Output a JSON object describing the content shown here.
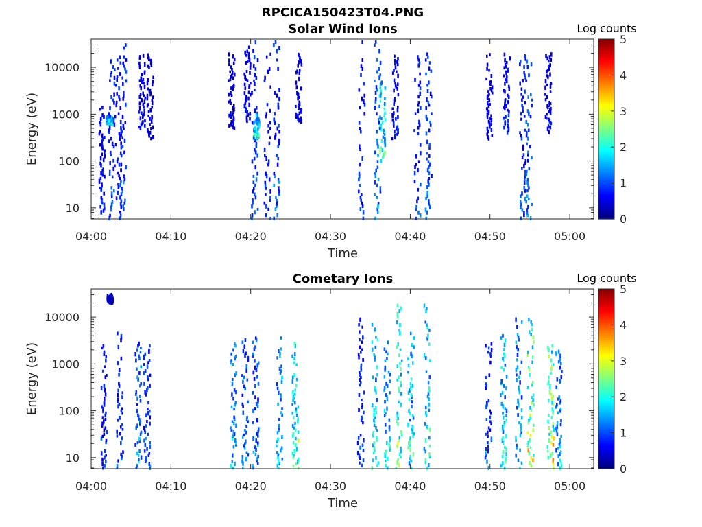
{
  "figure": {
    "title": "RPCICA150423T04.PNG"
  },
  "chart_data": [
    {
      "type": "heatmap",
      "title": "Solar Wind Ions",
      "xlabel": "Time",
      "ylabel": "Energy (eV)",
      "x_ticks": [
        "04:00",
        "04:10",
        "04:20",
        "04:30",
        "04:40",
        "04:50",
        "05:00"
      ],
      "x_range_minutes": [
        0,
        63
      ],
      "y_ticks": [
        "10",
        "100",
        "1000",
        "10000"
      ],
      "y_scale": "log",
      "y_range": [
        5.8,
        40000
      ],
      "colorbar": {
        "label": "Log counts",
        "ticks": [
          "0",
          "1",
          "2",
          "3",
          "4",
          "5"
        ],
        "range": [
          0,
          5
        ],
        "colormap": "jet"
      },
      "columns": [
        {
          "time_minutes": 1.3,
          "energy_range_eV": [
            8,
            2000
          ],
          "level": 0.6
        },
        {
          "time_minutes": 2.2,
          "energy_range_eV": [
            600,
            900
          ],
          "level": 1.6
        },
        {
          "time_minutes": 2.5,
          "energy_range_eV": [
            6,
            20000
          ],
          "level": 0.8
        },
        {
          "time_minutes": 3.3,
          "energy_range_eV": [
            6,
            25000
          ],
          "level": 0.7
        },
        {
          "time_minutes": 3.9,
          "energy_range_eV": [
            6,
            40000
          ],
          "level": 0.8
        },
        {
          "time_minutes": 6.3,
          "energy_range_eV": [
            500,
            20000
          ],
          "level": 0.5
        },
        {
          "time_minutes": 7.3,
          "energy_range_eV": [
            300,
            20000
          ],
          "level": 0.4
        },
        {
          "time_minutes": 17.5,
          "energy_range_eV": [
            500,
            20000
          ],
          "level": 0.4
        },
        {
          "time_minutes": 19.5,
          "energy_range_eV": [
            700,
            30000
          ],
          "level": 0.5
        },
        {
          "time_minutes": 20.4,
          "energy_range_eV": [
            6,
            40000
          ],
          "level": 0.8
        },
        {
          "time_minutes": 20.6,
          "energy_range_eV": [
            300,
            1000
          ],
          "level": 1.6
        },
        {
          "time_minutes": 22.0,
          "energy_range_eV": [
            6,
            40000
          ],
          "level": 0.7
        },
        {
          "time_minutes": 23.1,
          "energy_range_eV": [
            6,
            40000
          ],
          "level": 0.9
        },
        {
          "time_minutes": 25.9,
          "energy_range_eV": [
            700,
            20000
          ],
          "level": 0.5
        },
        {
          "time_minutes": 33.8,
          "energy_range_eV": [
            6,
            40000
          ],
          "level": 0.7
        },
        {
          "time_minutes": 35.8,
          "energy_range_eV": [
            6,
            40000
          ],
          "level": 1.1
        },
        {
          "time_minutes": 36.4,
          "energy_range_eV": [
            100,
            5000
          ],
          "level": 1.7
        },
        {
          "time_minutes": 38.0,
          "energy_range_eV": [
            300,
            20000
          ],
          "level": 0.6
        },
        {
          "time_minutes": 40.8,
          "energy_range_eV": [
            6,
            25000
          ],
          "level": 0.8
        },
        {
          "time_minutes": 42.2,
          "energy_range_eV": [
            6,
            25000
          ],
          "level": 0.9
        },
        {
          "time_minutes": 49.8,
          "energy_range_eV": [
            300,
            20000
          ],
          "level": 0.5
        },
        {
          "time_minutes": 52.0,
          "energy_range_eV": [
            400,
            20000
          ],
          "level": 0.6
        },
        {
          "time_minutes": 54.0,
          "energy_range_eV": [
            6,
            20000
          ],
          "level": 0.8
        },
        {
          "time_minutes": 54.8,
          "energy_range_eV": [
            6,
            20000
          ],
          "level": 1.0
        },
        {
          "time_minutes": 57.2,
          "energy_range_eV": [
            400,
            20000
          ],
          "level": 0.5
        }
      ]
    },
    {
      "type": "heatmap",
      "title": "Cometary Ions",
      "xlabel": "Time",
      "ylabel": "Energy (eV)",
      "x_ticks": [
        "04:00",
        "04:10",
        "04:20",
        "04:30",
        "04:40",
        "04:50",
        "05:00"
      ],
      "x_range_minutes": [
        0,
        63
      ],
      "y_ticks": [
        "10",
        "100",
        "1000",
        "10000"
      ],
      "y_scale": "log",
      "y_range": [
        5.8,
        40000
      ],
      "colorbar": {
        "label": "Log counts",
        "ticks": [
          "0",
          "1",
          "2",
          "3",
          "4",
          "5"
        ],
        "range": [
          0,
          5
        ],
        "colormap": "jet"
      },
      "columns": [
        {
          "time_minutes": 1.5,
          "energy_range_eV": [
            6,
            3000
          ],
          "level": 0.7
        },
        {
          "time_minutes": 2.3,
          "energy_range_eV": [
            20000,
            30000
          ],
          "level": 0.3
        },
        {
          "time_minutes": 3.5,
          "energy_range_eV": [
            6,
            5000
          ],
          "level": 0.8
        },
        {
          "time_minutes": 5.8,
          "energy_range_eV": [
            6,
            3000
          ],
          "level": 1.1
        },
        {
          "time_minutes": 6.9,
          "energy_range_eV": [
            6,
            3000
          ],
          "level": 0.9
        },
        {
          "time_minutes": 17.7,
          "energy_range_eV": [
            6,
            3000
          ],
          "level": 1.2
        },
        {
          "time_minutes": 19.2,
          "energy_range_eV": [
            6,
            4000
          ],
          "level": 1.0
        },
        {
          "time_minutes": 20.5,
          "energy_range_eV": [
            6,
            5000
          ],
          "level": 1.0
        },
        {
          "time_minutes": 23.5,
          "energy_range_eV": [
            6,
            4000
          ],
          "level": 1.3
        },
        {
          "time_minutes": 25.5,
          "energy_range_eV": [
            6,
            3000
          ],
          "level": 1.8
        },
        {
          "time_minutes": 33.7,
          "energy_range_eV": [
            6,
            10000
          ],
          "level": 0.8
        },
        {
          "time_minutes": 35.5,
          "energy_range_eV": [
            6,
            10000
          ],
          "level": 1.6
        },
        {
          "time_minutes": 37.0,
          "energy_range_eV": [
            6,
            5000
          ],
          "level": 1.4
        },
        {
          "time_minutes": 38.5,
          "energy_range_eV": [
            6,
            20000
          ],
          "level": 1.9
        },
        {
          "time_minutes": 40.0,
          "energy_range_eV": [
            6,
            5000
          ],
          "level": 1.5
        },
        {
          "time_minutes": 42.0,
          "energy_range_eV": [
            6,
            20000
          ],
          "level": 1.6
        },
        {
          "time_minutes": 49.7,
          "energy_range_eV": [
            6,
            3000
          ],
          "level": 0.9
        },
        {
          "time_minutes": 51.6,
          "energy_range_eV": [
            6,
            5000
          ],
          "level": 1.6
        },
        {
          "time_minutes": 53.5,
          "energy_range_eV": [
            6,
            10000
          ],
          "level": 1.3
        },
        {
          "time_minutes": 55.0,
          "energy_range_eV": [
            6,
            10000
          ],
          "level": 2.4
        },
        {
          "time_minutes": 57.5,
          "energy_range_eV": [
            6,
            3000
          ],
          "level": 2.3
        },
        {
          "time_minutes": 58.5,
          "energy_range_eV": [
            6,
            2000
          ],
          "level": 1.2
        }
      ]
    }
  ]
}
